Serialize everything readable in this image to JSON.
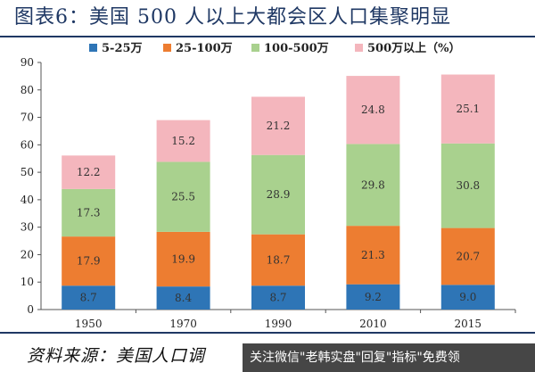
{
  "title": "图表6：美国 500 人以上大都会区人口集聚明显",
  "source": "资料来源：美国人口调",
  "watermark": "关注微信\"老韩实盘\"回复\"指标\"免费领",
  "colors": {
    "title": "#1f3864",
    "series": [
      "#2e75b6",
      "#ed7d31",
      "#a9d18e",
      "#f4b6bd"
    ]
  },
  "chart_data": {
    "type": "bar",
    "stacked": true,
    "categories": [
      "1950",
      "1970",
      "1990",
      "2010",
      "2015"
    ],
    "series": [
      {
        "name": "5-25万",
        "values": [
          8.7,
          8.4,
          8.7,
          9.2,
          9.0
        ]
      },
      {
        "name": "25-100万",
        "values": [
          17.9,
          19.9,
          18.7,
          21.3,
          20.7
        ]
      },
      {
        "name": "100-500万",
        "values": [
          17.3,
          25.5,
          28.9,
          29.8,
          30.8
        ]
      },
      {
        "name": "500万以上（%）",
        "values": [
          12.2,
          15.2,
          21.2,
          24.8,
          25.1
        ]
      }
    ],
    "ylim": [
      0,
      90
    ],
    "yticks": [
      0,
      10,
      20,
      30,
      40,
      50,
      60,
      70,
      80,
      90
    ],
    "value_labels": [
      [
        "8.7",
        "8.4",
        "8.7",
        "9.2",
        "9.0"
      ],
      [
        "17.9",
        "19.9",
        "18.7",
        "21.3",
        "20.7"
      ],
      [
        "17.3",
        "25.5",
        "28.9",
        "29.8",
        "30.8"
      ],
      [
        "12.2",
        "15.2",
        "21.2",
        "24.8",
        "25.1"
      ]
    ],
    "legend_position": "top",
    "grid": false
  }
}
